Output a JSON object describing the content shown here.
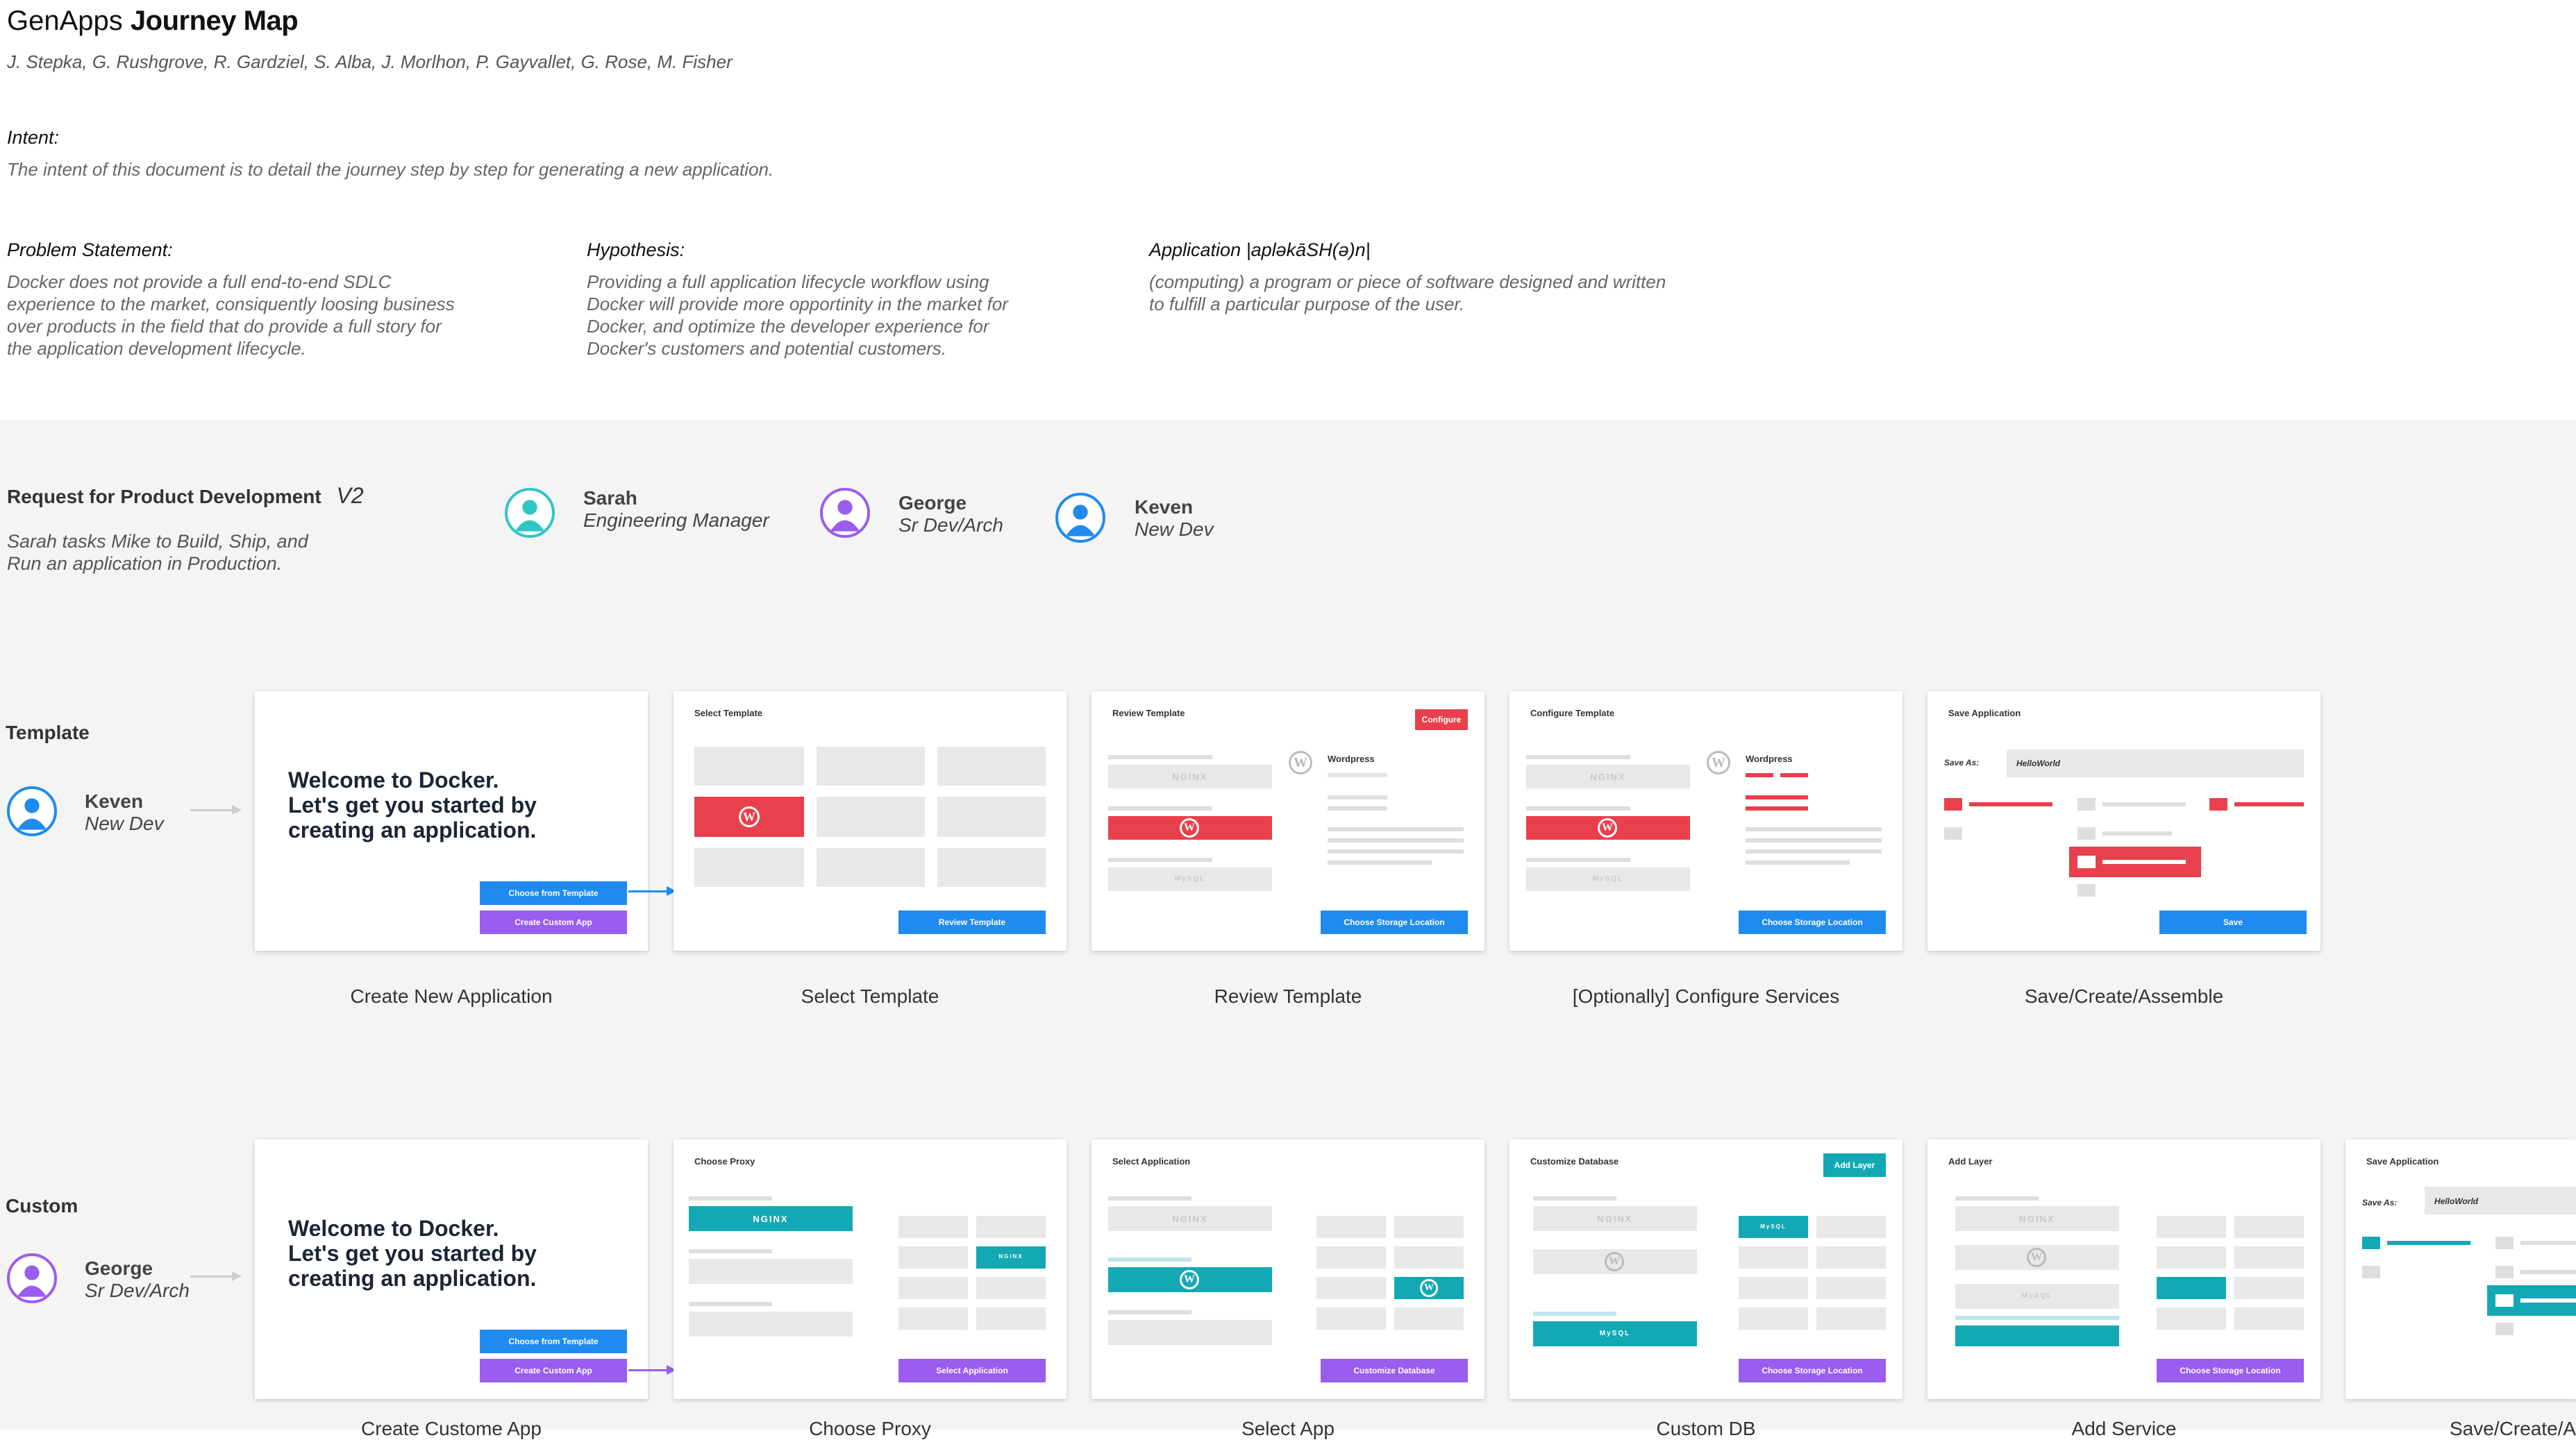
{
  "header": {
    "title_light": "GenApps",
    "title_bold": "Journey Map",
    "authors": "J. Stepka, G. Rushgrove, R. Gardziel, S. Alba, J. Morlhon, P. Gayvallet, G. Rose, M. Fisher"
  },
  "intent": {
    "label": "Intent:",
    "text": "The intent of this document is to detail the journey step by step for generating a new application."
  },
  "problem": {
    "label": "Problem Statement:",
    "lines": [
      "Docker does not provide a full end-to-end SDLC",
      "experience to the market, consiquently loosing business",
      "over products in the field that do provide a full story for",
      "the application development lifecycle."
    ]
  },
  "hypothesis": {
    "label": "Hypothesis:",
    "lines": [
      "Providing a full application lifecycle workflow using",
      "Docker will provide more opportinity in the market for",
      "Docker, and optimize the developer experience for",
      "Docker's customers and potential customers."
    ]
  },
  "definition": {
    "label": "Application |apləkāSH(ə)n|",
    "lines": [
      "(computing) a program or piece of software designed and written",
      "to fulfill a particular purpose of the user."
    ]
  },
  "request": {
    "title": "Request for Product Development",
    "version": "V2",
    "lines": [
      "Sarah tasks Mike to Build, Ship, and",
      "Run an application in Production."
    ]
  },
  "personas": [
    {
      "name": "Sarah",
      "role": "Engineering Manager",
      "color": "#2fc6c6"
    },
    {
      "name": "George",
      "role": "Sr Dev/Arch",
      "color": "#9b5cf0"
    },
    {
      "name": "Keven",
      "role": "New Dev",
      "color": "#1f8bf1"
    }
  ],
  "colors": {
    "red": "#e8404c",
    "teal": "#13a9b4",
    "blue": "#1f8bf1",
    "purple": "#9b5cf0"
  },
  "template_row": {
    "label": "Template",
    "persona_name": "Keven",
    "persona_role": "New Dev",
    "captions": [
      "Create New Application",
      "Select Template",
      "Review Template",
      "[Optionally] Configure Services",
      "Save/Create/Assemble"
    ],
    "welcome": [
      "Welcome to Docker.",
      "Let's get you started by",
      "creating an application."
    ],
    "btn_template": "Choose from Template",
    "btn_custom": "Create Custom App",
    "card_titles": [
      "Select Template",
      "Review Template",
      "Configure Template",
      "Save Application"
    ],
    "review_btn": "Review Template",
    "storage_btn": "Choose Storage Location",
    "configure_btn": "Configure",
    "save_btn": "Save",
    "save_as": "Save As:",
    "hello": "HelloWorld",
    "wordpress": "Wordpress",
    "nginx": "NGINX",
    "mysql": "MySQL"
  },
  "custom_row": {
    "label": "Custom",
    "persona_name": "George",
    "persona_role": "Sr Dev/Arch",
    "captions": [
      "Create Custome App",
      "Choose Proxy",
      "Select App",
      "Custom DB",
      "Add Service",
      "Save/Create/A"
    ],
    "card_titles": [
      "Choose Proxy",
      "Select Application",
      "Customize Database",
      "Add Layer",
      "Save Application"
    ],
    "select_app_btn": "Select Application",
    "custom_db_btn": "Customize Database",
    "storage_btn": "Choose Storage Location",
    "add_layer_btn": "Add Layer",
    "nginx": "NGINX",
    "mysql": "MySQL",
    "save_as": "Save As:",
    "hello": "HelloWorld"
  }
}
